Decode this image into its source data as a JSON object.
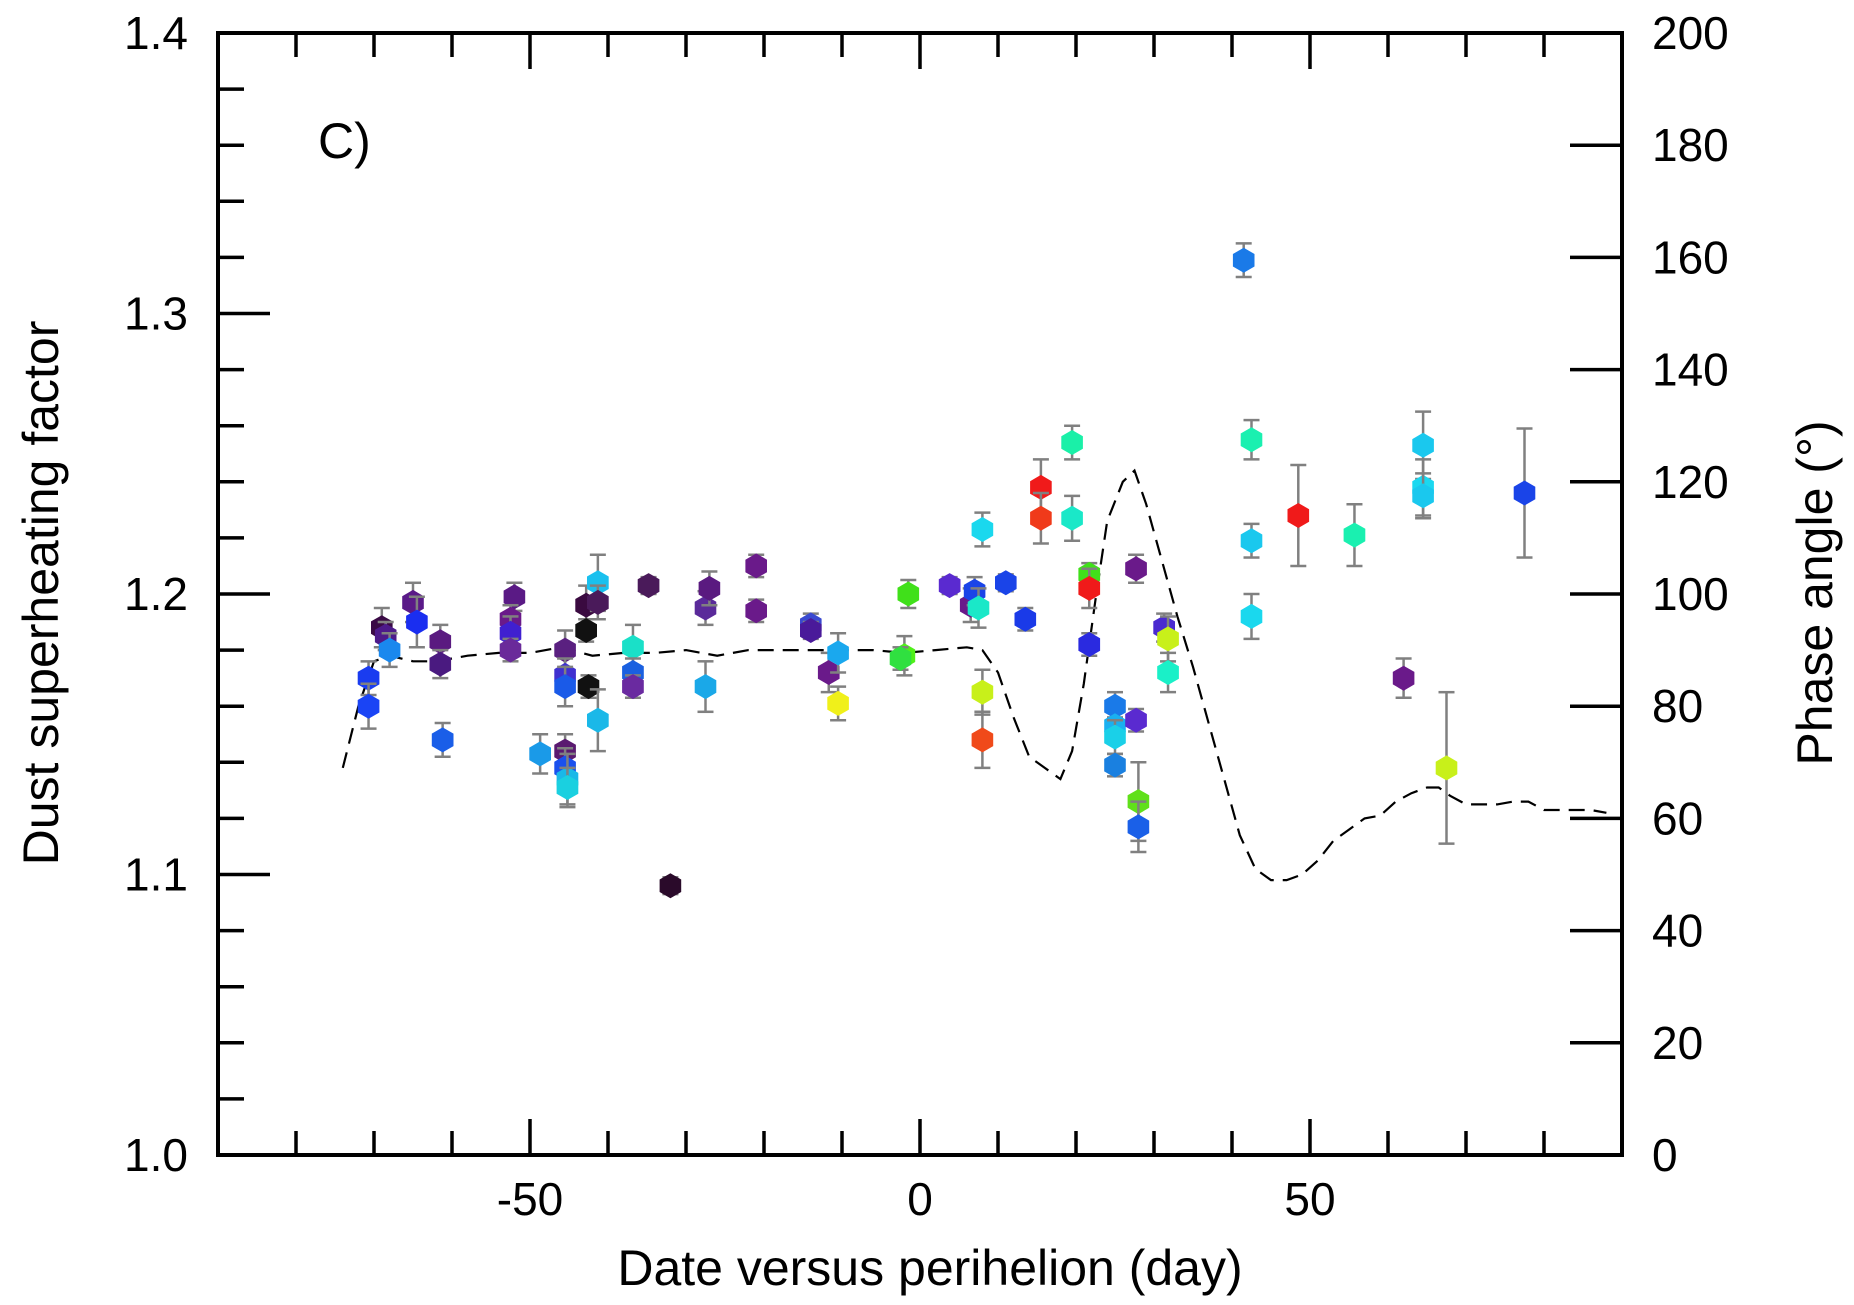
{
  "chart_data": {
    "type": "scatter",
    "panel_label": "C)",
    "xlabel": "Date versus perihelion (day)",
    "ylabel": "Dust superheating factor",
    "y2label": "Phase angle (°)",
    "xlim": [
      -90,
      90
    ],
    "ylim": [
      1.0,
      1.4
    ],
    "y2lim": [
      0,
      200
    ],
    "x_ticks": [
      -50,
      0,
      50
    ],
    "x_tick_labels": [
      "-50",
      "0",
      "50"
    ],
    "y_ticks": [
      1.0,
      1.1,
      1.2,
      1.3,
      1.4
    ],
    "y_tick_labels": [
      "1.0",
      "1.1",
      "1.2",
      "1.3",
      "1.4"
    ],
    "y2_ticks": [
      0,
      20,
      40,
      60,
      80,
      100,
      120,
      140,
      160,
      180,
      200
    ],
    "y2_tick_labels": [
      "0",
      "20",
      "40",
      "60",
      "80",
      "100",
      "120",
      "140",
      "160",
      "180",
      "200"
    ],
    "grid": false,
    "legend": "none",
    "colors": {
      "axis": "#000000",
      "errorbar": "#808080",
      "phase_line": "#000000"
    },
    "points": [
      {
        "x": -70.7,
        "y": 1.17,
        "err": 0.006,
        "color": "#1a3cf0"
      },
      {
        "x": -70.7,
        "y": 1.16,
        "err": 0.008,
        "color": "#1a44f5"
      },
      {
        "x": -69.0,
        "y": 1.188,
        "err": 0.007,
        "color": "#3a0a45"
      },
      {
        "x": -68.5,
        "y": 1.185,
        "err": 0.005,
        "color": "#4d1a8a"
      },
      {
        "x": -68.0,
        "y": 1.18,
        "err": 0.006,
        "color": "#1a88ee"
      },
      {
        "x": -65.0,
        "y": 1.197,
        "err": 0.007,
        "color": "#5a1a88"
      },
      {
        "x": -64.5,
        "y": 1.19,
        "err": 0.009,
        "color": "#1a2ef0"
      },
      {
        "x": -61.5,
        "y": 1.183,
        "err": 0.006,
        "color": "#5a1a80"
      },
      {
        "x": -61.5,
        "y": 1.175,
        "err": 0.005,
        "color": "#4a1a80"
      },
      {
        "x": -61.2,
        "y": 1.148,
        "err": 0.006,
        "color": "#1a5ee8"
      },
      {
        "x": -52.0,
        "y": 1.199,
        "err": 0.005,
        "color": "#5a1a85"
      },
      {
        "x": -52.5,
        "y": 1.191,
        "err": 0.005,
        "color": "#6a1a8a"
      },
      {
        "x": -52.5,
        "y": 1.186,
        "err": 0.006,
        "color": "#4020d0"
      },
      {
        "x": -52.5,
        "y": 1.18,
        "err": 0.004,
        "color": "#6a2a9a"
      },
      {
        "x": -48.7,
        "y": 1.143,
        "err": 0.007,
        "color": "#1a9ae8"
      },
      {
        "x": -45.5,
        "y": 1.18,
        "err": 0.007,
        "color": "#5a2080"
      },
      {
        "x": -45.5,
        "y": 1.171,
        "err": 0.006,
        "color": "#4030d0"
      },
      {
        "x": -45.5,
        "y": 1.167,
        "err": 0.007,
        "color": "#1a5ae8"
      },
      {
        "x": -45.5,
        "y": 1.144,
        "err": 0.006,
        "color": "#5a1a70"
      },
      {
        "x": -45.5,
        "y": 1.138,
        "err": 0.007,
        "color": "#1a50ee"
      },
      {
        "x": -45.2,
        "y": 1.134,
        "err": 0.009,
        "color": "#1ab8e8"
      },
      {
        "x": -45.2,
        "y": 1.131,
        "err": 0.007,
        "color": "#1ad0e0"
      },
      {
        "x": -42.8,
        "y": 1.196,
        "err": 0.007,
        "color": "#3a0a40"
      },
      {
        "x": -42.8,
        "y": 1.187,
        "err": 0.004,
        "color": "#111111"
      },
      {
        "x": -42.5,
        "y": 1.167,
        "err": 0.004,
        "color": "#111111"
      },
      {
        "x": -41.3,
        "y": 1.204,
        "err": 0.01,
        "color": "#1ac0ee"
      },
      {
        "x": -41.3,
        "y": 1.197,
        "err": 0.006,
        "color": "#4a1a5a"
      },
      {
        "x": -41.3,
        "y": 1.155,
        "err": 0.011,
        "color": "#1ab8e8"
      },
      {
        "x": -36.8,
        "y": 1.181,
        "err": 0.008,
        "color": "#1ae0c8"
      },
      {
        "x": -36.8,
        "y": 1.172,
        "err": 0.005,
        "color": "#1a60e0"
      },
      {
        "x": -36.8,
        "y": 1.167,
        "err": 0.004,
        "color": "#6a2aa0"
      },
      {
        "x": -34.8,
        "y": 1.203,
        "err": 0.003,
        "color": "#4a1a5a"
      },
      {
        "x": -32.0,
        "y": 1.096,
        "err": 0.003,
        "color": "#2a0a2a"
      },
      {
        "x": -27.5,
        "y": 1.195,
        "err": 0.006,
        "color": "#5a2a9a"
      },
      {
        "x": -27.0,
        "y": 1.202,
        "err": 0.006,
        "color": "#5a1a80"
      },
      {
        "x": -27.5,
        "y": 1.167,
        "err": 0.009,
        "color": "#1aa8e8"
      },
      {
        "x": -21.0,
        "y": 1.21,
        "err": 0.004,
        "color": "#6a1a8a"
      },
      {
        "x": -21.0,
        "y": 1.194,
        "err": 0.004,
        "color": "#6a1a8a"
      },
      {
        "x": -14.0,
        "y": 1.189,
        "err": 0.004,
        "color": "#3a4ad0"
      },
      {
        "x": -14.0,
        "y": 1.187,
        "err": 0.003,
        "color": "#4a1a9a"
      },
      {
        "x": -11.7,
        "y": 1.172,
        "err": 0.007,
        "color": "#6a1a8a"
      },
      {
        "x": -10.5,
        "y": 1.179,
        "err": 0.007,
        "color": "#1aa8ee"
      },
      {
        "x": -10.5,
        "y": 1.161,
        "err": 0.006,
        "color": "#f0f01a"
      },
      {
        "x": -1.5,
        "y": 1.2,
        "err": 0.005,
        "color": "#40e01a"
      },
      {
        "x": -2.0,
        "y": 1.178,
        "err": 0.007,
        "color": "#50f01a"
      },
      {
        "x": -2.5,
        "y": 1.177,
        "err": 0.004,
        "color": "#30e040"
      },
      {
        "x": 3.8,
        "y": 1.203,
        "err": 0.003,
        "color": "#5a2ad0"
      },
      {
        "x": 6.5,
        "y": 1.196,
        "err": 0.006,
        "color": "#6a1a8a"
      },
      {
        "x": 7.0,
        "y": 1.201,
        "err": 0.005,
        "color": "#1a44e8"
      },
      {
        "x": 7.5,
        "y": 1.195,
        "err": 0.007,
        "color": "#1ae8c8"
      },
      {
        "x": 8.0,
        "y": 1.223,
        "err": 0.006,
        "color": "#1ad8ee"
      },
      {
        "x": 8.0,
        "y": 1.165,
        "err": 0.008,
        "color": "#c8f01a"
      },
      {
        "x": 8.0,
        "y": 1.148,
        "err": 0.01,
        "color": "#f04a1a"
      },
      {
        "x": 11.0,
        "y": 1.204,
        "err": 0.003,
        "color": "#1a44e8"
      },
      {
        "x": 13.5,
        "y": 1.191,
        "err": 0.004,
        "color": "#1a3ae8"
      },
      {
        "x": 15.5,
        "y": 1.238,
        "err": 0.01,
        "color": "#f01a1a"
      },
      {
        "x": 15.5,
        "y": 1.227,
        "err": 0.009,
        "color": "#f03a1a"
      },
      {
        "x": 19.5,
        "y": 1.254,
        "err": 0.006,
        "color": "#1af0a8"
      },
      {
        "x": 19.5,
        "y": 1.227,
        "err": 0.008,
        "color": "#1ae8c8"
      },
      {
        "x": 21.7,
        "y": 1.207,
        "err": 0.004,
        "color": "#40e01a"
      },
      {
        "x": 21.7,
        "y": 1.202,
        "err": 0.007,
        "color": "#f01a1a"
      },
      {
        "x": 21.7,
        "y": 1.182,
        "err": 0.004,
        "color": "#2a2ae0"
      },
      {
        "x": 25.0,
        "y": 1.16,
        "err": 0.005,
        "color": "#1a7ae8"
      },
      {
        "x": 25.0,
        "y": 1.153,
        "err": 0.003,
        "color": "#1ab0f0"
      },
      {
        "x": 25.0,
        "y": 1.149,
        "err": 0.006,
        "color": "#1ad0e8"
      },
      {
        "x": 25.0,
        "y": 1.139,
        "err": 0.004,
        "color": "#1a80e0"
      },
      {
        "x": 27.7,
        "y": 1.209,
        "err": 0.005,
        "color": "#6a1a8a"
      },
      {
        "x": 27.7,
        "y": 1.155,
        "err": 0.004,
        "color": "#5a2ad0"
      },
      {
        "x": 28.0,
        "y": 1.126,
        "err": 0.014,
        "color": "#60e01a"
      },
      {
        "x": 28.0,
        "y": 1.117,
        "err": 0.009,
        "color": "#1a60e8"
      },
      {
        "x": 31.3,
        "y": 1.188,
        "err": 0.005,
        "color": "#4a2ad0"
      },
      {
        "x": 31.8,
        "y": 1.184,
        "err": 0.008,
        "color": "#c8f01a"
      },
      {
        "x": 31.8,
        "y": 1.172,
        "err": 0.007,
        "color": "#1af0c8"
      },
      {
        "x": 41.5,
        "y": 1.319,
        "err": 0.006,
        "color": "#1a7ae8"
      },
      {
        "x": 42.5,
        "y": 1.255,
        "err": 0.007,
        "color": "#1af0b0"
      },
      {
        "x": 42.5,
        "y": 1.219,
        "err": 0.006,
        "color": "#1ac8ee"
      },
      {
        "x": 42.5,
        "y": 1.192,
        "err": 0.008,
        "color": "#1ad8ee"
      },
      {
        "x": 48.5,
        "y": 1.228,
        "err": 0.018,
        "color": "#f01a1a"
      },
      {
        "x": 55.7,
        "y": 1.221,
        "err": 0.011,
        "color": "#1af0b0"
      },
      {
        "x": 62.0,
        "y": 1.17,
        "err": 0.007,
        "color": "#6a1a8a"
      },
      {
        "x": 64.5,
        "y": 1.253,
        "err": 0.012,
        "color": "#1ac8ee"
      },
      {
        "x": 64.5,
        "y": 1.238,
        "err": 0.01,
        "color": "#1ad8f0"
      },
      {
        "x": 64.5,
        "y": 1.235,
        "err": 0.008,
        "color": "#1ac8ee"
      },
      {
        "x": 67.5,
        "y": 1.138,
        "err": 0.027,
        "color": "#c8f01a"
      },
      {
        "x": 77.5,
        "y": 1.236,
        "err": 0.023,
        "color": "#1a44e8"
      }
    ],
    "phase_angle_series": {
      "name": "",
      "axis": "right",
      "style": "dashed",
      "x": [
        -74,
        -72,
        -70,
        -68,
        -65,
        -62,
        -58,
        -54,
        -50,
        -46,
        -42,
        -38,
        -34,
        -30,
        -26,
        -22,
        -18,
        -14,
        -10,
        -6,
        -2,
        2,
        6,
        8,
        10,
        12,
        14,
        16,
        18,
        19.5,
        21,
        22.5,
        24,
        26,
        27.5,
        29,
        31,
        33,
        35,
        37,
        39,
        41,
        43,
        45,
        47,
        49,
        51,
        53,
        55,
        57,
        59,
        61,
        63,
        65,
        66.5,
        68,
        70,
        72,
        74,
        76,
        78,
        80,
        82,
        84,
        86,
        88
      ],
      "y": [
        69,
        80,
        88,
        89,
        88,
        88,
        89,
        89.5,
        89.5,
        90.5,
        89,
        89.5,
        89.5,
        90,
        89,
        90,
        90,
        90,
        90,
        90,
        89.5,
        90,
        90.5,
        90,
        86,
        78,
        71,
        69,
        67,
        72,
        84,
        99,
        113,
        120,
        122,
        116,
        106,
        96,
        87,
        77,
        67,
        57,
        51,
        49,
        49,
        50,
        52.5,
        56,
        58,
        60,
        60.5,
        63,
        64.5,
        65.5,
        65.5,
        64,
        62.5,
        62.5,
        62.5,
        63,
        63,
        61.5,
        61.5,
        61.5,
        61.5,
        61
      ]
    }
  }
}
